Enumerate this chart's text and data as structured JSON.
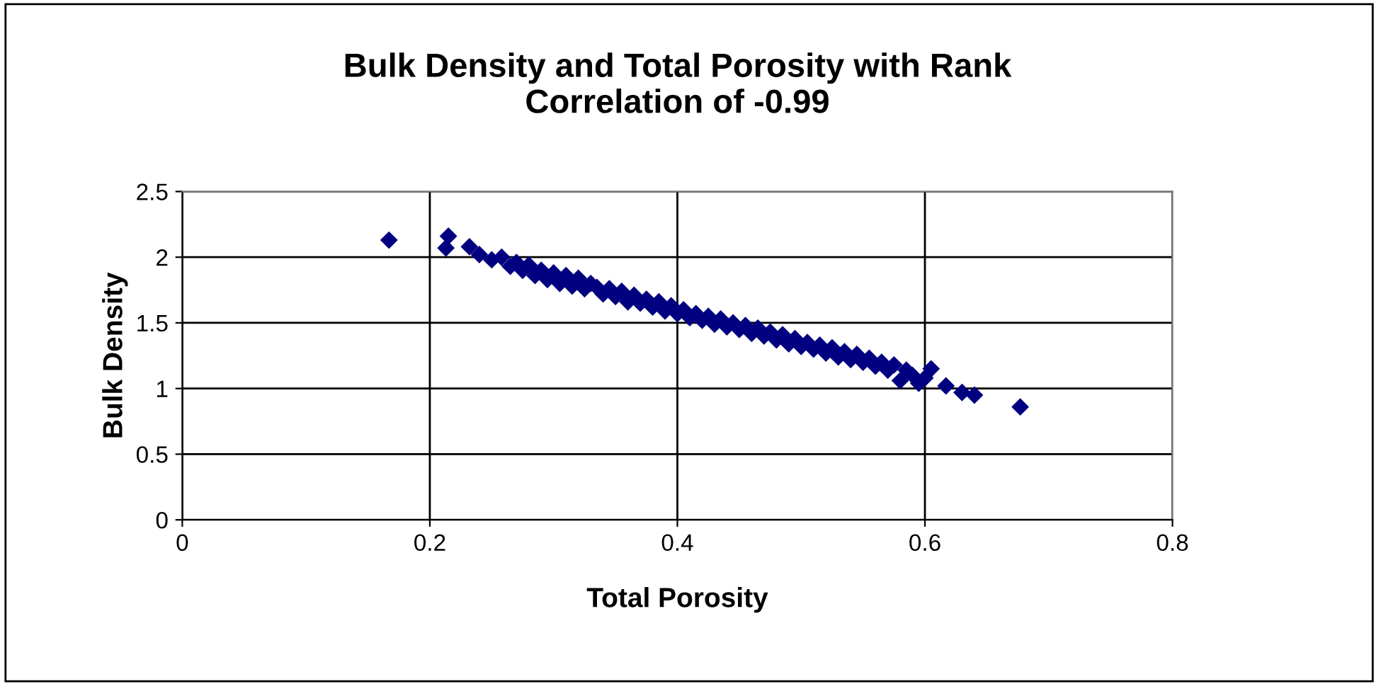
{
  "chart_data": {
    "type": "scatter",
    "title": "Bulk Density and Total Porosity with Rank\nCorrelation of -0.99",
    "xlabel": "Total Porosity",
    "ylabel": "Bulk Density",
    "xlim": [
      0,
      0.8
    ],
    "xticks": [
      0,
      0.2,
      0.4,
      0.6,
      0.8
    ],
    "ylim": [
      0,
      2.5
    ],
    "yticks": [
      0,
      0.5,
      1,
      1.5,
      2,
      2.5
    ],
    "grid": true,
    "marker": "diamond",
    "legend": false,
    "series": [
      {
        "color": "#000080",
        "x": [
          0.167,
          0.213,
          0.215,
          0.232,
          0.24,
          0.25,
          0.258,
          0.265,
          0.27,
          0.275,
          0.28,
          0.285,
          0.29,
          0.295,
          0.3,
          0.305,
          0.31,
          0.315,
          0.32,
          0.325,
          0.33,
          0.335,
          0.34,
          0.345,
          0.35,
          0.355,
          0.36,
          0.365,
          0.37,
          0.375,
          0.38,
          0.385,
          0.39,
          0.395,
          0.4,
          0.405,
          0.41,
          0.415,
          0.42,
          0.425,
          0.43,
          0.435,
          0.44,
          0.445,
          0.45,
          0.455,
          0.46,
          0.465,
          0.47,
          0.475,
          0.48,
          0.485,
          0.49,
          0.495,
          0.5,
          0.505,
          0.51,
          0.515,
          0.52,
          0.525,
          0.53,
          0.535,
          0.54,
          0.545,
          0.55,
          0.555,
          0.56,
          0.565,
          0.57,
          0.575,
          0.58,
          0.585,
          0.59,
          0.595,
          0.6,
          0.605,
          0.617,
          0.63,
          0.64,
          0.677
        ],
        "values": [
          2.13,
          2.07,
          2.16,
          2.08,
          2.02,
          1.98,
          2.0,
          1.93,
          1.96,
          1.9,
          1.94,
          1.86,
          1.9,
          1.83,
          1.88,
          1.8,
          1.86,
          1.78,
          1.84,
          1.76,
          1.8,
          1.77,
          1.72,
          1.76,
          1.7,
          1.74,
          1.66,
          1.71,
          1.65,
          1.68,
          1.62,
          1.66,
          1.59,
          1.63,
          1.57,
          1.6,
          1.54,
          1.57,
          1.52,
          1.55,
          1.49,
          1.53,
          1.47,
          1.5,
          1.45,
          1.48,
          1.42,
          1.46,
          1.4,
          1.43,
          1.37,
          1.41,
          1.34,
          1.38,
          1.32,
          1.35,
          1.3,
          1.33,
          1.27,
          1.31,
          1.24,
          1.28,
          1.22,
          1.26,
          1.2,
          1.23,
          1.17,
          1.2,
          1.14,
          1.18,
          1.06,
          1.14,
          1.1,
          1.04,
          1.08,
          1.15,
          1.02,
          0.97,
          0.95,
          0.86
        ]
      }
    ]
  }
}
